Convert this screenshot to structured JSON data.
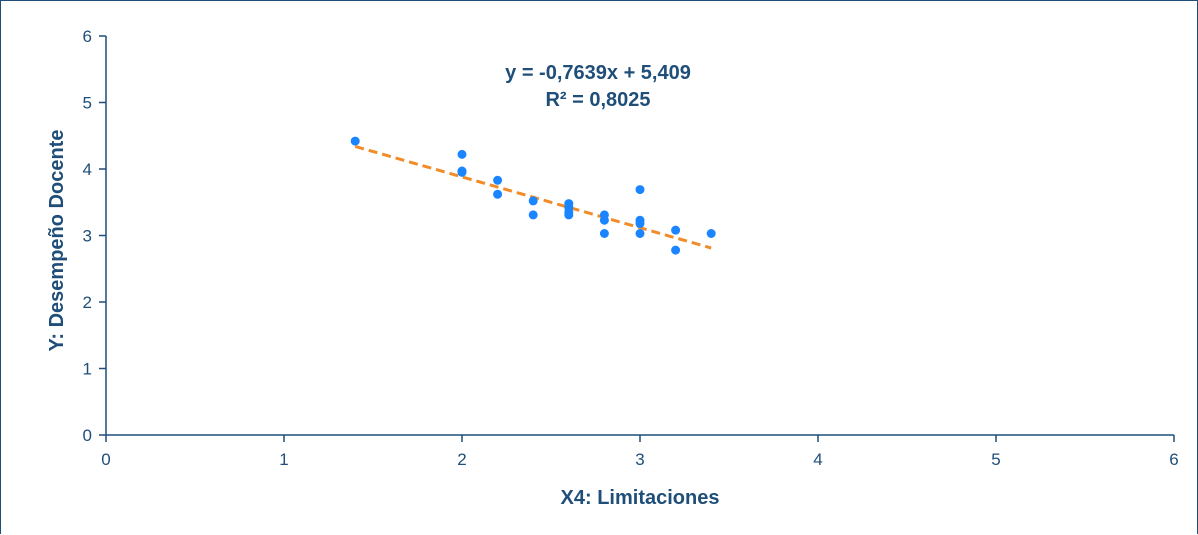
{
  "chart_data": {
    "type": "scatter",
    "title": "",
    "xlabel": "X4: Limitaciones",
    "ylabel": "Y: Desempeño Docente",
    "xlim": [
      0,
      6
    ],
    "ylim": [
      0,
      6
    ],
    "xticks": [
      "0",
      "1",
      "2",
      "3",
      "4",
      "5",
      "6"
    ],
    "yticks": [
      "0",
      "1",
      "2",
      "3",
      "4",
      "5",
      "6"
    ],
    "grid": false,
    "legend": "none",
    "series": [
      {
        "color": "#1a85ff",
        "points": [
          {
            "x": 1.4,
            "y": 4.42
          },
          {
            "x": 2.0,
            "y": 4.22
          },
          {
            "x": 2.0,
            "y": 3.97
          },
          {
            "x": 2.0,
            "y": 3.95
          },
          {
            "x": 2.2,
            "y": 3.83
          },
          {
            "x": 2.2,
            "y": 3.62
          },
          {
            "x": 2.4,
            "y": 3.52
          },
          {
            "x": 2.4,
            "y": 3.31
          },
          {
            "x": 2.6,
            "y": 3.48
          },
          {
            "x": 2.6,
            "y": 3.42
          },
          {
            "x": 2.6,
            "y": 3.35
          },
          {
            "x": 2.6,
            "y": 3.31
          },
          {
            "x": 2.8,
            "y": 3.31
          },
          {
            "x": 2.8,
            "y": 3.23
          },
          {
            "x": 2.8,
            "y": 3.03
          },
          {
            "x": 3.0,
            "y": 3.69
          },
          {
            "x": 3.0,
            "y": 3.23
          },
          {
            "x": 3.0,
            "y": 3.18
          },
          {
            "x": 3.0,
            "y": 3.03
          },
          {
            "x": 3.2,
            "y": 3.08
          },
          {
            "x": 3.2,
            "y": 2.78
          },
          {
            "x": 3.4,
            "y": 3.03
          }
        ]
      }
    ],
    "trendline": {
      "type": "linear",
      "slope": -0.7639,
      "intercept": 5.409,
      "x_range": [
        1.4,
        3.4
      ],
      "color": "#f28c28",
      "style": "dashed",
      "equation_label": "y = -0,7639x  + 5,409",
      "r2_label": "R² = 0,8025"
    },
    "colors": {
      "axis": "#1f4e79",
      "text": "#1f4e79"
    }
  }
}
